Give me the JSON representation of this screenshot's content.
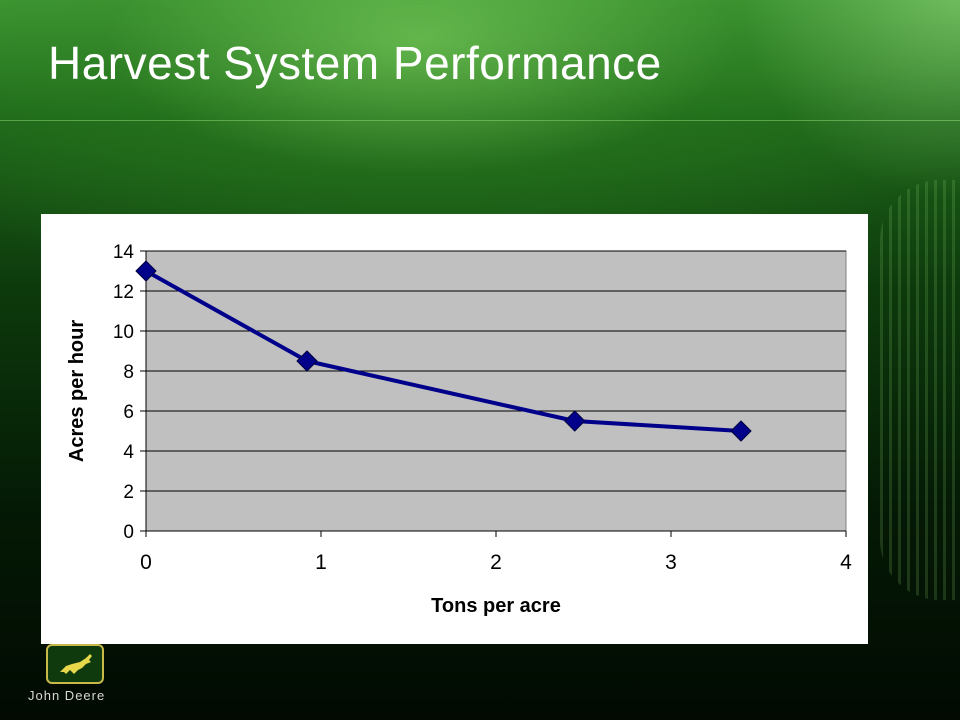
{
  "slide": {
    "title": "Harvest System Performance"
  },
  "logo": {
    "text": "John Deere",
    "icon": "leaping-deer-icon"
  },
  "colors": {
    "series": "#00008B",
    "plot_background": "#C0C0C0",
    "title_text": "#FFFFFF"
  },
  "chart_data": {
    "type": "line",
    "title": "",
    "xlabel": "Tons per acre",
    "ylabel": "Acres per hour",
    "xlim": [
      0,
      4
    ],
    "ylim": [
      0,
      14
    ],
    "xticks": [
      0,
      1,
      2,
      3,
      4
    ],
    "yticks": [
      0,
      2,
      4,
      6,
      8,
      10,
      12,
      14
    ],
    "grid": "horizontal",
    "marker": "diamond",
    "series": [
      {
        "x": [
          0,
          0.92,
          2.45,
          3.4
        ],
        "y": [
          13,
          8.5,
          5.5,
          5
        ]
      }
    ]
  }
}
